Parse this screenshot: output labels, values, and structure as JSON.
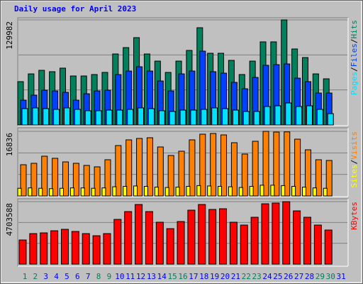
{
  "chart_data": [
    {
      "type": "bar",
      "title": "Daily usage for April 2023",
      "ylim": [
        0,
        129982
      ],
      "yticks": [
        129982
      ],
      "grid_lines": 3,
      "legend_separator": "/",
      "series": [
        {
          "name": "Hits",
          "color": "#00805c",
          "values": [
            53600,
            63200,
            67600,
            65900,
            70300,
            60600,
            60600,
            62400,
            65000,
            87800,
            95700,
            108000,
            87800,
            79000,
            65000,
            79000,
            92200,
            120300,
            88700,
            88700,
            79900,
            62400,
            79000,
            102800,
            102800,
            129982,
            94000,
            83400,
            63200,
            57100,
            null
          ]
        },
        {
          "name": "Files",
          "color": "#0040ff",
          "values": [
            30700,
            36900,
            43000,
            42100,
            40400,
            30700,
            38600,
            42100,
            43000,
            62300,
            66700,
            72000,
            66700,
            54400,
            42100,
            63200,
            66700,
            91300,
            65900,
            64100,
            52700,
            44800,
            58800,
            73800,
            74600,
            75500,
            57900,
            53600,
            39500,
            39500,
            null
          ]
        },
        {
          "name": "Pages",
          "color": "#00e0ff",
          "values": [
            20200,
            21100,
            20200,
            19300,
            21100,
            19300,
            17600,
            17600,
            18400,
            18400,
            19300,
            21100,
            20200,
            17600,
            16700,
            18400,
            18400,
            19300,
            21100,
            20200,
            18400,
            16700,
            16700,
            22800,
            23700,
            27200,
            22800,
            23700,
            19300,
            14000,
            null
          ]
        }
      ]
    },
    {
      "type": "bar",
      "ylim": [
        0,
        16836
      ],
      "yticks": [
        16836
      ],
      "grid_lines": 3,
      "legend_separator": "/",
      "series": [
        {
          "name": "Visits",
          "color": "#ff8000",
          "values": [
            8140,
            8510,
            10360,
            9810,
            8880,
            8510,
            7960,
            7590,
            9440,
            13140,
            14620,
            14990,
            15170,
            12770,
            10550,
            11660,
            14620,
            16100,
            16280,
            15910,
            13880,
            10920,
            14250,
            16836,
            16650,
            16700,
            14800,
            12030,
            9440,
            9250,
            null
          ]
        },
        {
          "name": "Sites",
          "color": "#ffff00",
          "values": [
            2000,
            2100,
            2000,
            1900,
            2000,
            2100,
            2100,
            2000,
            2100,
            2400,
            2500,
            2600,
            2500,
            2300,
            2200,
            2300,
            2500,
            2700,
            2600,
            2500,
            2400,
            2200,
            2500,
            2800,
            2800,
            2700,
            2500,
            2300,
            2100,
            2000,
            null
          ]
        }
      ]
    },
    {
      "type": "bar",
      "ylim": [
        0,
        4703588
      ],
      "yticks": [
        4703588
      ],
      "grid_lines": 3,
      "categories": [
        "1",
        "2",
        "3",
        "4",
        "5",
        "6",
        "7",
        "8",
        "9",
        "10",
        "11",
        "12",
        "13",
        "14",
        "15",
        "16",
        "17",
        "18",
        "19",
        "20",
        "21",
        "22",
        "23",
        "24",
        "25",
        "26",
        "27",
        "28",
        "29",
        "30",
        "31"
      ],
      "category_colors": [
        "#00805c",
        "#00805c",
        "#0000ff",
        "#0000ff",
        "#0000ff",
        "#0000ff",
        "#0000ff",
        "#00805c",
        "#00805c",
        "#0000ff",
        "#0000ff",
        "#0000ff",
        "#0000ff",
        "#0000ff",
        "#00805c",
        "#00805c",
        "#0000ff",
        "#0000ff",
        "#0000ff",
        "#0000ff",
        "#0000ff",
        "#00805c",
        "#00805c",
        "#0000ff",
        "#0000ff",
        "#0000ff",
        "#0000ff",
        "#0000ff",
        "#00805c",
        "#00805c",
        "#0000ff"
      ],
      "series": [
        {
          "name": "KBytes",
          "color": "#ff0000",
          "values": [
            1817000,
            2298000,
            2352000,
            2512000,
            2619000,
            2459000,
            2298000,
            2138000,
            2298000,
            3367000,
            3955000,
            4490000,
            3955000,
            3154000,
            2672000,
            3207000,
            4062000,
            4490000,
            4116000,
            4169000,
            3154000,
            2940000,
            3528000,
            4543000,
            4597000,
            4703588,
            4009000,
            3528000,
            2940000,
            2566000,
            null
          ]
        }
      ]
    }
  ]
}
